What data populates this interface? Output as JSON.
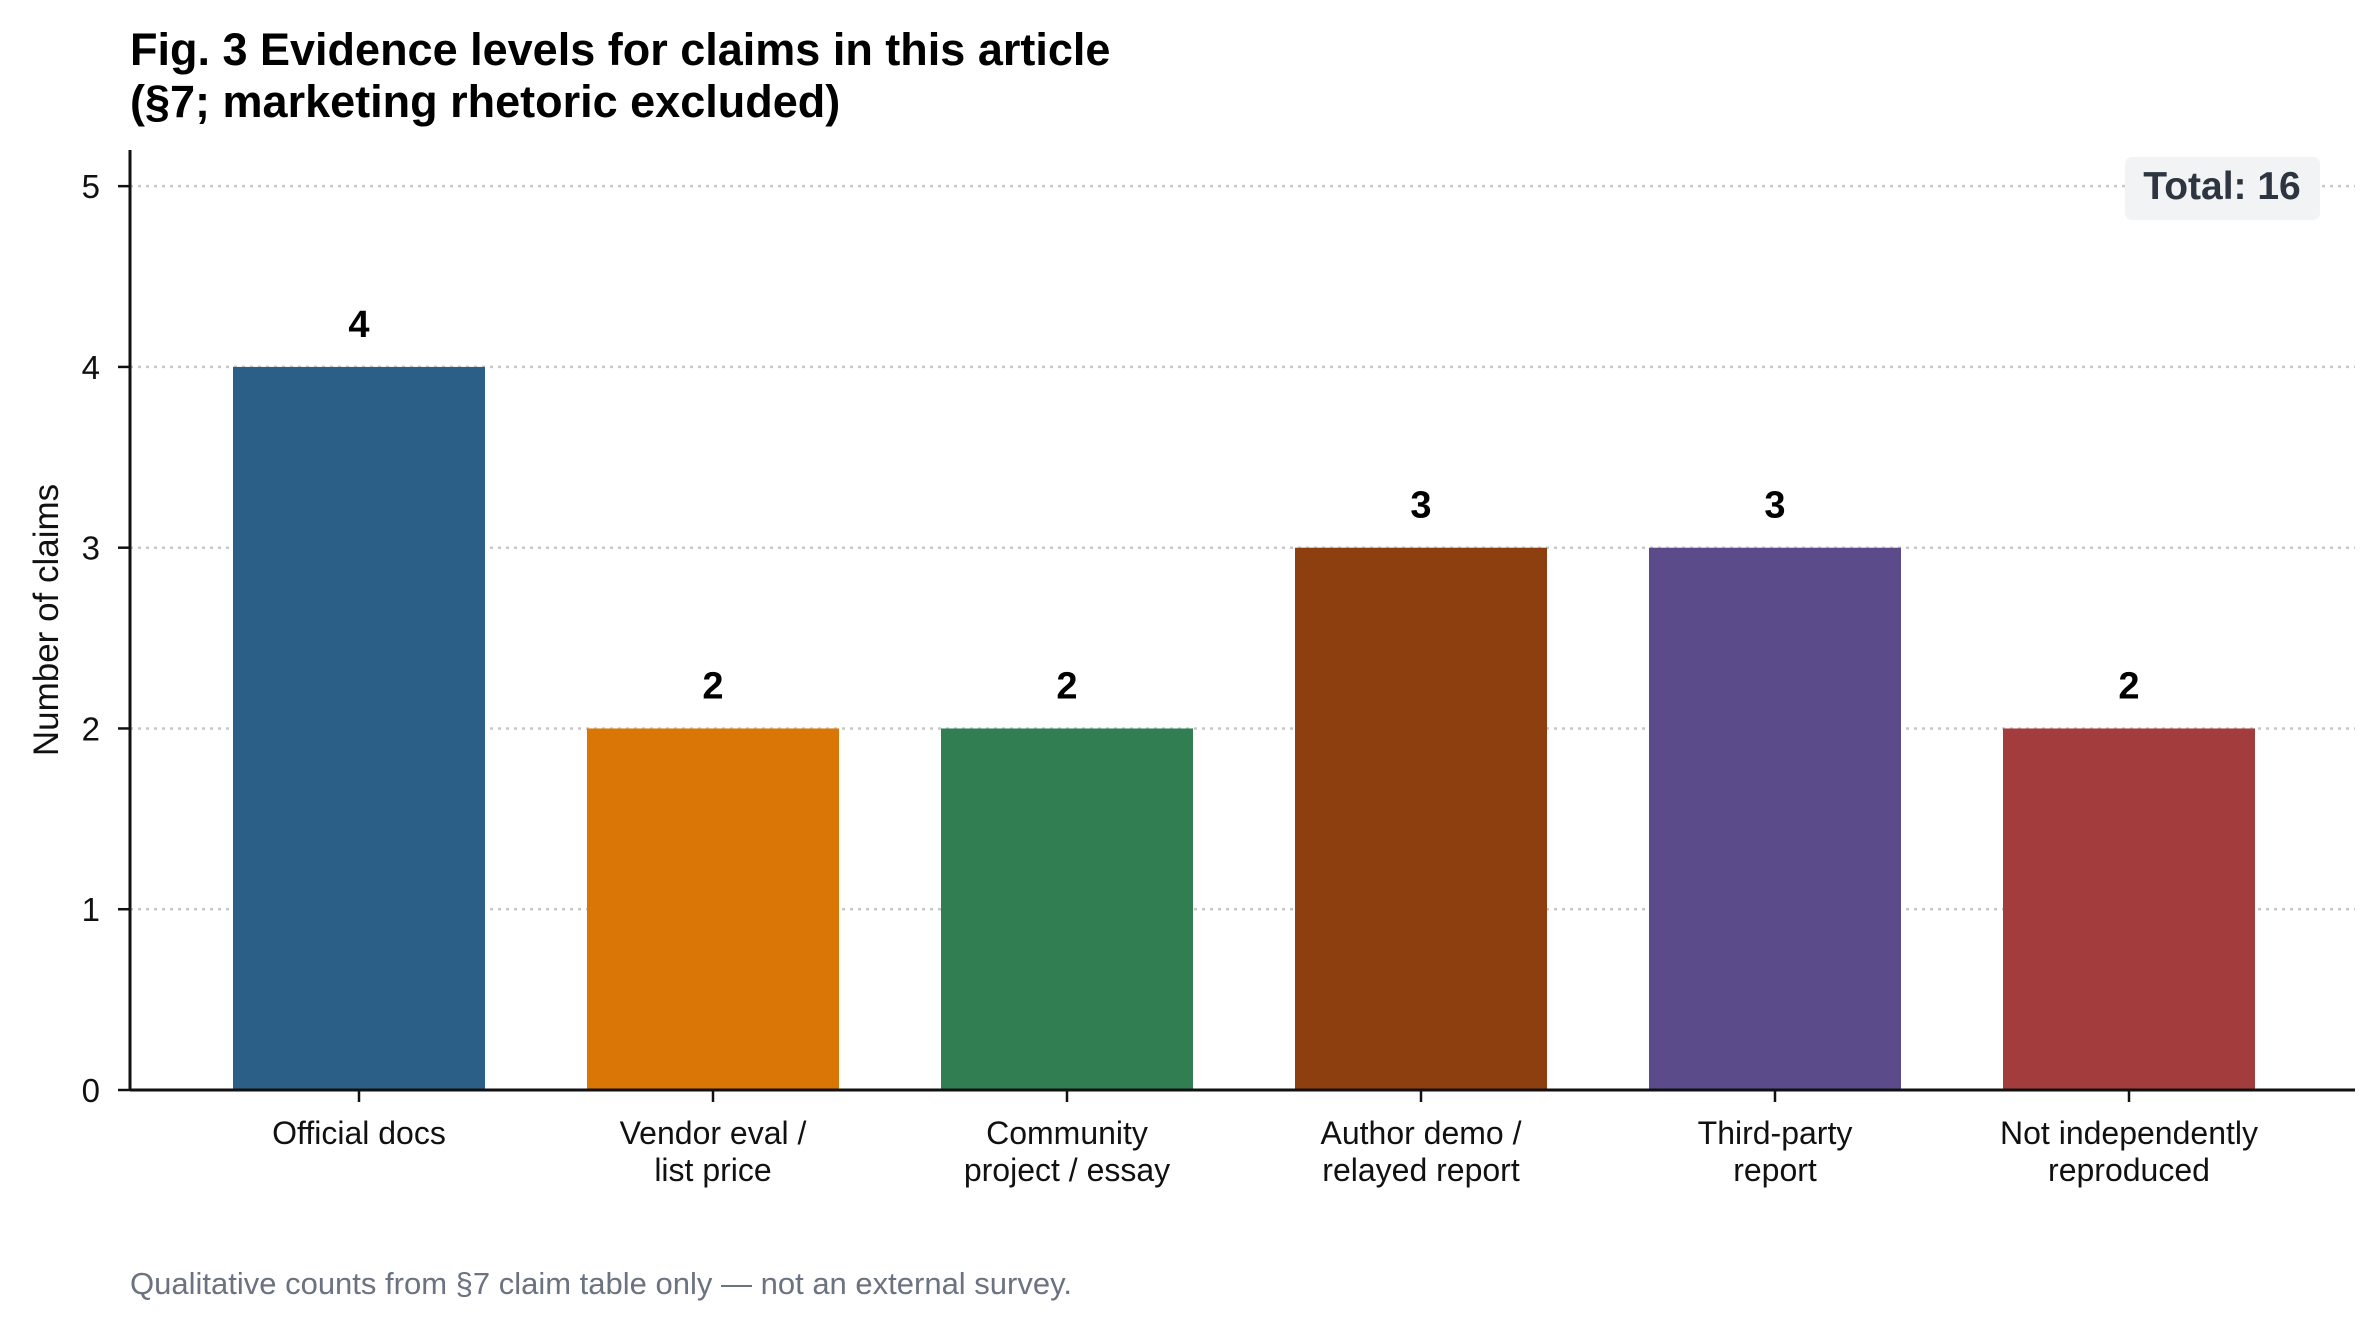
{
  "chart_data": {
    "type": "bar",
    "title_lines": [
      "Fig. 3  Evidence levels for claims in this article",
      "(§7; marketing rhetoric excluded)"
    ],
    "xlabel": "",
    "ylabel": "Number of claims",
    "ylim": [
      0,
      5.2
    ],
    "yticks": [
      "0",
      "1",
      "2",
      "3",
      "4",
      "5"
    ],
    "grid": true,
    "categories": [
      [
        "Official docs"
      ],
      [
        "Vendor eval /",
        "list price"
      ],
      [
        "Community",
        "project / essay"
      ],
      [
        "Author demo /",
        "relayed report"
      ],
      [
        "Third-party",
        "report"
      ],
      [
        "Not independently",
        "reproduced"
      ]
    ],
    "values": [
      4,
      2,
      2,
      3,
      3,
      2
    ],
    "colors": [
      "#2c5f87",
      "#d97606",
      "#317e52",
      "#8e3f10",
      "#5b4b8a",
      "#a33d3d"
    ],
    "total_label": "Total: 16"
  },
  "footnote": "Qualitative counts from §7 claim table only — not an external survey."
}
